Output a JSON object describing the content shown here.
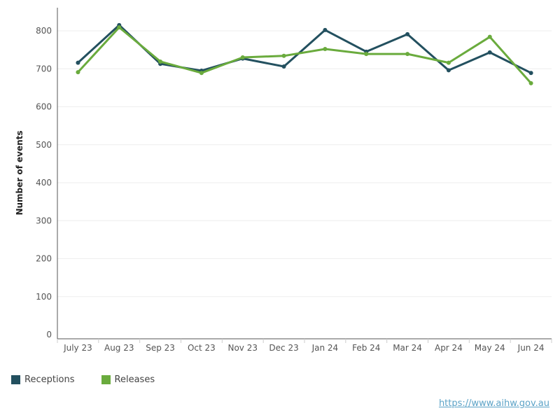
{
  "chart_data": {
    "type": "line",
    "xlabel": "",
    "ylabel": "Number of events",
    "categories": [
      "July 23",
      "Aug 23",
      "Sep 23",
      "Oct 23",
      "Nov 23",
      "Dec 23",
      "Jan 24",
      "Feb 24",
      "Mar 24",
      "Apr 24",
      "May 24",
      "Jun 24"
    ],
    "ylim": [
      0,
      800
    ],
    "yticks": [
      0,
      100,
      200,
      300,
      400,
      500,
      600,
      700,
      800
    ],
    "grid": true,
    "legend_position": "bottom-left",
    "series": [
      {
        "name": "Receptions",
        "color": "#23505f",
        "values": [
          716,
          815,
          713,
          695,
          727,
          706,
          802,
          745,
          791,
          696,
          743,
          689
        ]
      },
      {
        "name": "Releases",
        "color": "#6aab3d",
        "values": [
          691,
          809,
          719,
          689,
          730,
          734,
          752,
          739,
          739,
          716,
          784,
          662
        ]
      }
    ]
  },
  "legend": {
    "receptions_label": "Receptions",
    "releases_label": "Releases",
    "receptions_color": "#23505f",
    "releases_color": "#6aab3d"
  },
  "source": {
    "url_text": "https://www.aihw.gov.au"
  }
}
